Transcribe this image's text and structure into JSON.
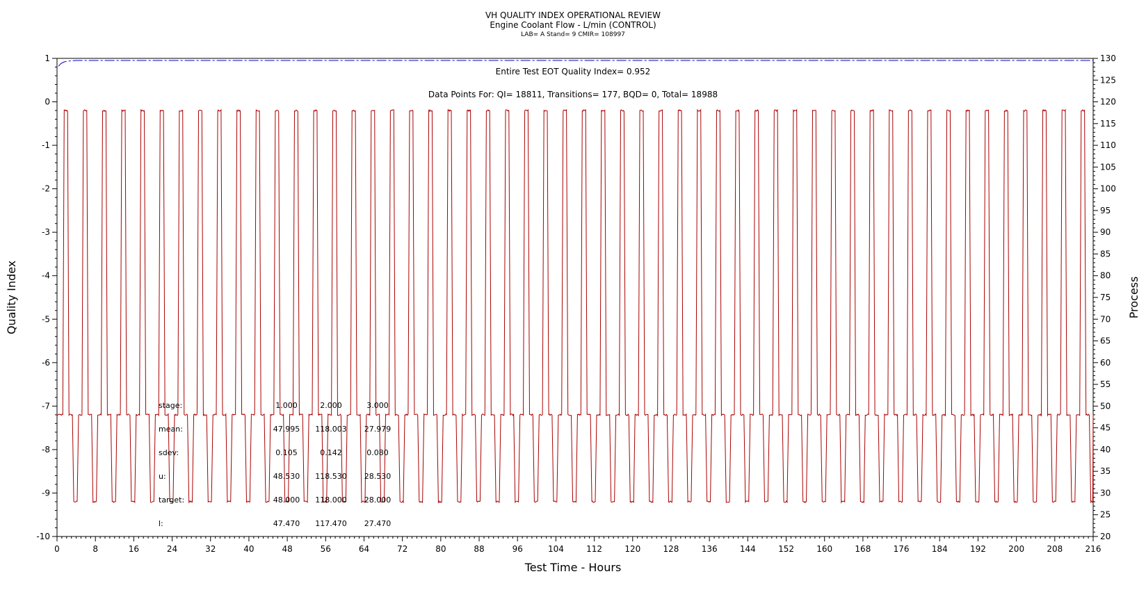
{
  "chart_data": {
    "type": "line",
    "title": "VH QUALITY INDEX OPERATIONAL REVIEW",
    "subtitle": "Engine Coolant Flow - L/min (CONTROL)",
    "subtitle2": "LAB= A Stand= 9 CMIR= 108997",
    "xlabel": "Test Time - Hours",
    "ylabel": "Quality Index",
    "y2label": "Process",
    "xlim": [
      0,
      216
    ],
    "ylim": [
      -10,
      1
    ],
    "y2lim": [
      20,
      130
    ],
    "x_ticks": [
      0,
      8,
      16,
      24,
      32,
      40,
      48,
      56,
      64,
      72,
      80,
      88,
      96,
      104,
      112,
      120,
      128,
      136,
      144,
      152,
      160,
      168,
      176,
      184,
      192,
      200,
      208,
      216
    ],
    "y_ticks": [
      1,
      0,
      -1,
      -2,
      -3,
      -4,
      -5,
      -6,
      -7,
      -8,
      -9,
      -10
    ],
    "y2_ticks": [
      130,
      125,
      120,
      115,
      110,
      105,
      100,
      95,
      90,
      85,
      80,
      75,
      70,
      65,
      60,
      55,
      50,
      45,
      40,
      35,
      30,
      25,
      20
    ],
    "grid": false,
    "annotations": {
      "eot_qi": "Entire Test EOT Quality Index=   0.952",
      "data_points": "Data Points For: QI= 18811, Transitions=   177, BQD=     0, Total= 18988"
    },
    "stats_table": {
      "rows": [
        {
          "label": "stage:",
          "values": [
            "1.000",
            "2.000",
            "3.000"
          ]
        },
        {
          "label": "mean:",
          "values": [
            "47.995",
            "118.003",
            "27.979"
          ]
        },
        {
          "label": "sdev:",
          "values": [
            "0.105",
            "0.142",
            "0.080"
          ]
        },
        {
          "label": "u:",
          "values": [
            "48.530",
            "118.530",
            "28.530"
          ]
        },
        {
          "label": "target:",
          "values": [
            "48.000",
            "118.000",
            "28.000"
          ]
        },
        {
          "label": "l:",
          "values": [
            "47.470",
            "117.470",
            "27.470"
          ]
        }
      ]
    },
    "series": [
      {
        "name": "Quality Index",
        "axis": "left",
        "color": "#0000cc",
        "style": "dash-dot",
        "points": [
          [
            0.3,
            0.82
          ],
          [
            0.8,
            0.88
          ],
          [
            1.5,
            0.92
          ],
          [
            2.5,
            0.94
          ],
          [
            4,
            0.952
          ],
          [
            216,
            0.952
          ]
        ]
      },
      {
        "name": "Process",
        "axis": "right",
        "color": "#aa0000",
        "style": "solid",
        "cycle_period_hours": 4,
        "stage_levels": [
          48,
          118,
          28
        ],
        "stage_durations_hours": [
          1.0,
          1.0,
          1.0,
          1.0
        ],
        "cycle_sequence": "48 -> 118 -> 48 -> 28 -> 48"
      }
    ]
  }
}
